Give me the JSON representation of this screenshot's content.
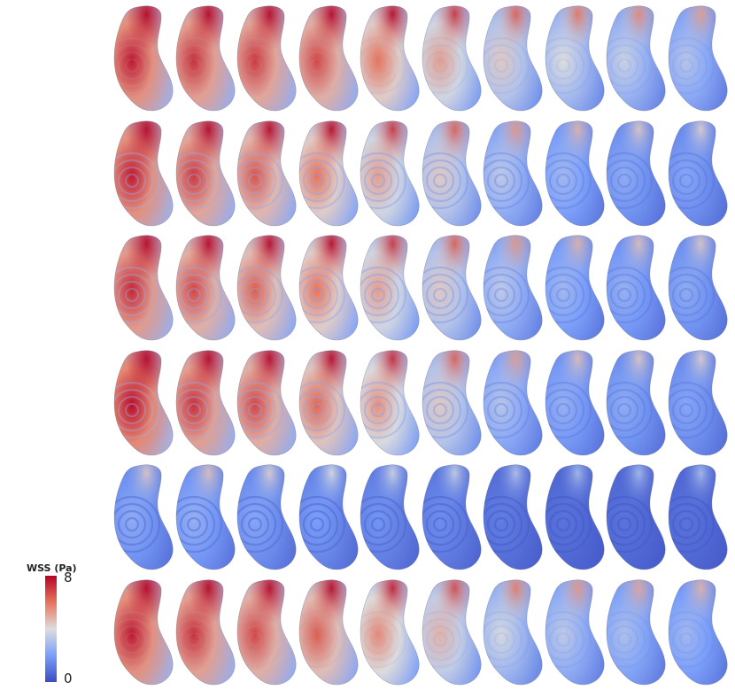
{
  "colorbar": {
    "title": "WSS (Pa)",
    "max_label": "8",
    "min_label": "0",
    "colormap": [
      "#3b4cc0",
      "#7b9ff9",
      "#dddddd",
      "#e7745b",
      "#b40426"
    ]
  },
  "grid": {
    "rows": 6,
    "columns": 10,
    "intensity": [
      [
        0.95,
        0.9,
        0.88,
        0.85,
        0.75,
        0.65,
        0.55,
        0.5,
        0.45,
        0.4
      ],
      [
        0.95,
        0.88,
        0.82,
        0.75,
        0.65,
        0.55,
        0.42,
        0.35,
        0.3,
        0.28
      ],
      [
        0.92,
        0.85,
        0.8,
        0.75,
        0.65,
        0.55,
        0.42,
        0.35,
        0.32,
        0.3
      ],
      [
        0.98,
        0.9,
        0.85,
        0.78,
        0.68,
        0.55,
        0.4,
        0.32,
        0.3,
        0.28
      ],
      [
        0.3,
        0.32,
        0.28,
        0.25,
        0.22,
        0.2,
        0.15,
        0.12,
        0.12,
        0.12
      ],
      [
        0.95,
        0.9,
        0.85,
        0.8,
        0.7,
        0.6,
        0.48,
        0.42,
        0.38,
        0.35
      ]
    ]
  }
}
